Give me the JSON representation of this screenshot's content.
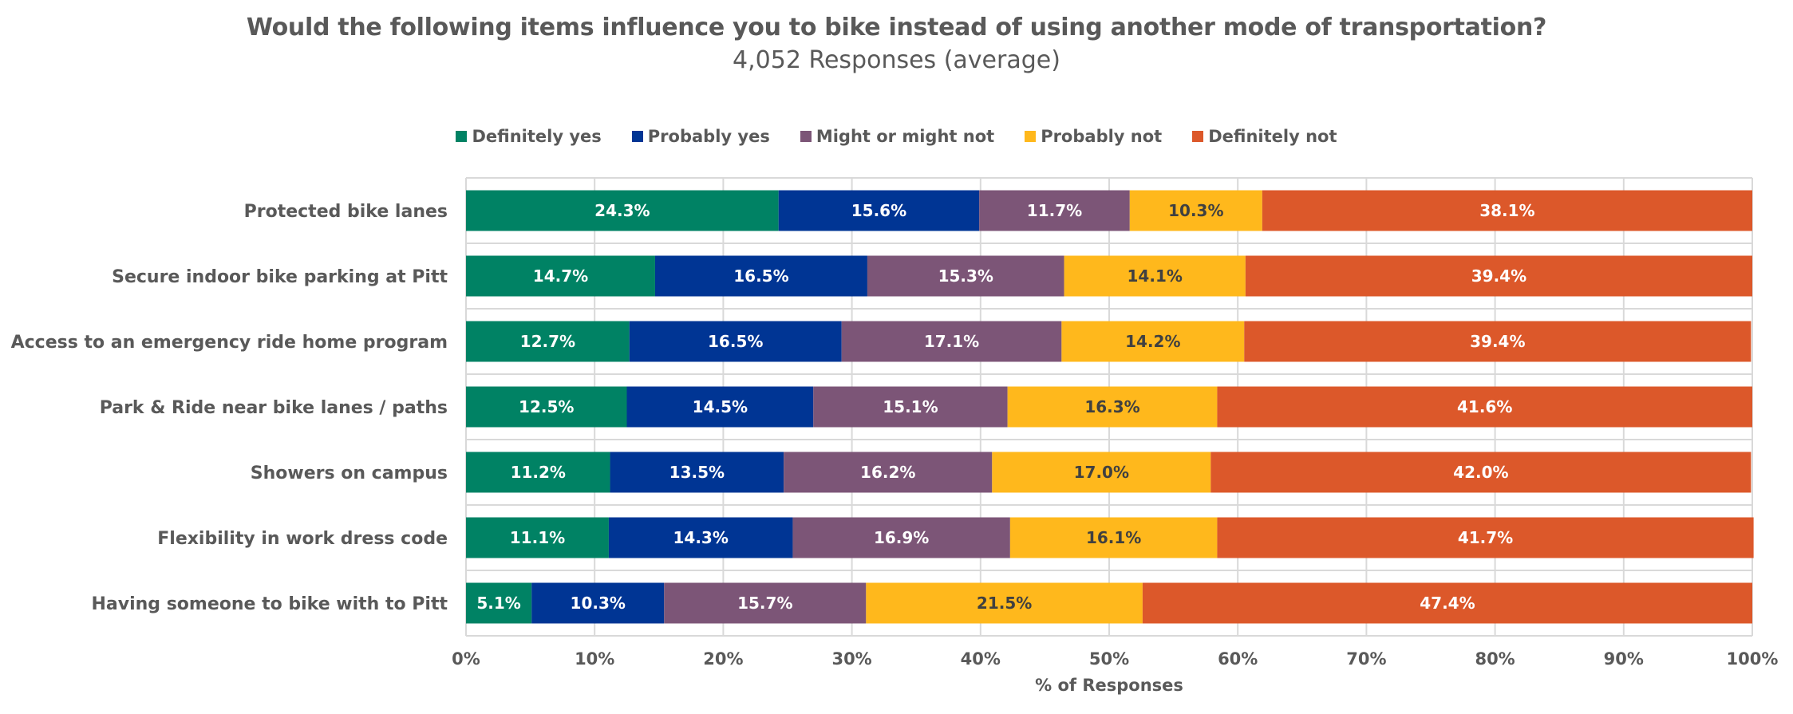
{
  "chart_data": {
    "type": "bar",
    "orientation": "horizontal",
    "stacked": true,
    "title": "Would the following items influence you to bike instead of using another mode of transportation?",
    "subtitle": "4,052 Responses (average)",
    "xlabel": "% of Responses",
    "ylabel": "",
    "xlim": [
      0,
      100
    ],
    "x_ticks": [
      "0%",
      "10%",
      "20%",
      "30%",
      "40%",
      "50%",
      "60%",
      "70%",
      "80%",
      "90%",
      "100%"
    ],
    "grid": true,
    "legend_position": "top-center",
    "categories": [
      "Protected bike lanes",
      "Secure indoor bike parking at Pitt",
      "Access to an emergency ride home program",
      "Park & Ride near bike lanes / paths",
      "Showers on campus",
      "Flexibility in work dress code",
      "Having someone to bike with to Pitt"
    ],
    "series": [
      {
        "name": "Definitely yes",
        "color": "#008264",
        "label_color": "#ffffff",
        "values": [
          24.3,
          14.7,
          12.7,
          12.5,
          11.2,
          11.1,
          5.1
        ]
      },
      {
        "name": "Probably yes",
        "color": "#003594",
        "label_color": "#ffffff",
        "values": [
          15.6,
          16.5,
          16.5,
          14.5,
          13.5,
          14.3,
          10.3
        ]
      },
      {
        "name": "Might or might not",
        "color": "#7c5577",
        "label_color": "#ffffff",
        "values": [
          11.7,
          15.3,
          17.1,
          15.1,
          16.2,
          16.9,
          15.7
        ]
      },
      {
        "name": "Probably not",
        "color": "#ffb81c",
        "label_color": "#404040",
        "values": [
          10.3,
          14.1,
          14.2,
          16.3,
          17.0,
          16.1,
          21.5
        ]
      },
      {
        "name": "Definitely not",
        "color": "#dc582a",
        "label_color": "#ffffff",
        "values": [
          38.1,
          39.4,
          39.4,
          41.6,
          42.0,
          41.7,
          47.4
        ]
      }
    ],
    "value_suffix": "%"
  }
}
